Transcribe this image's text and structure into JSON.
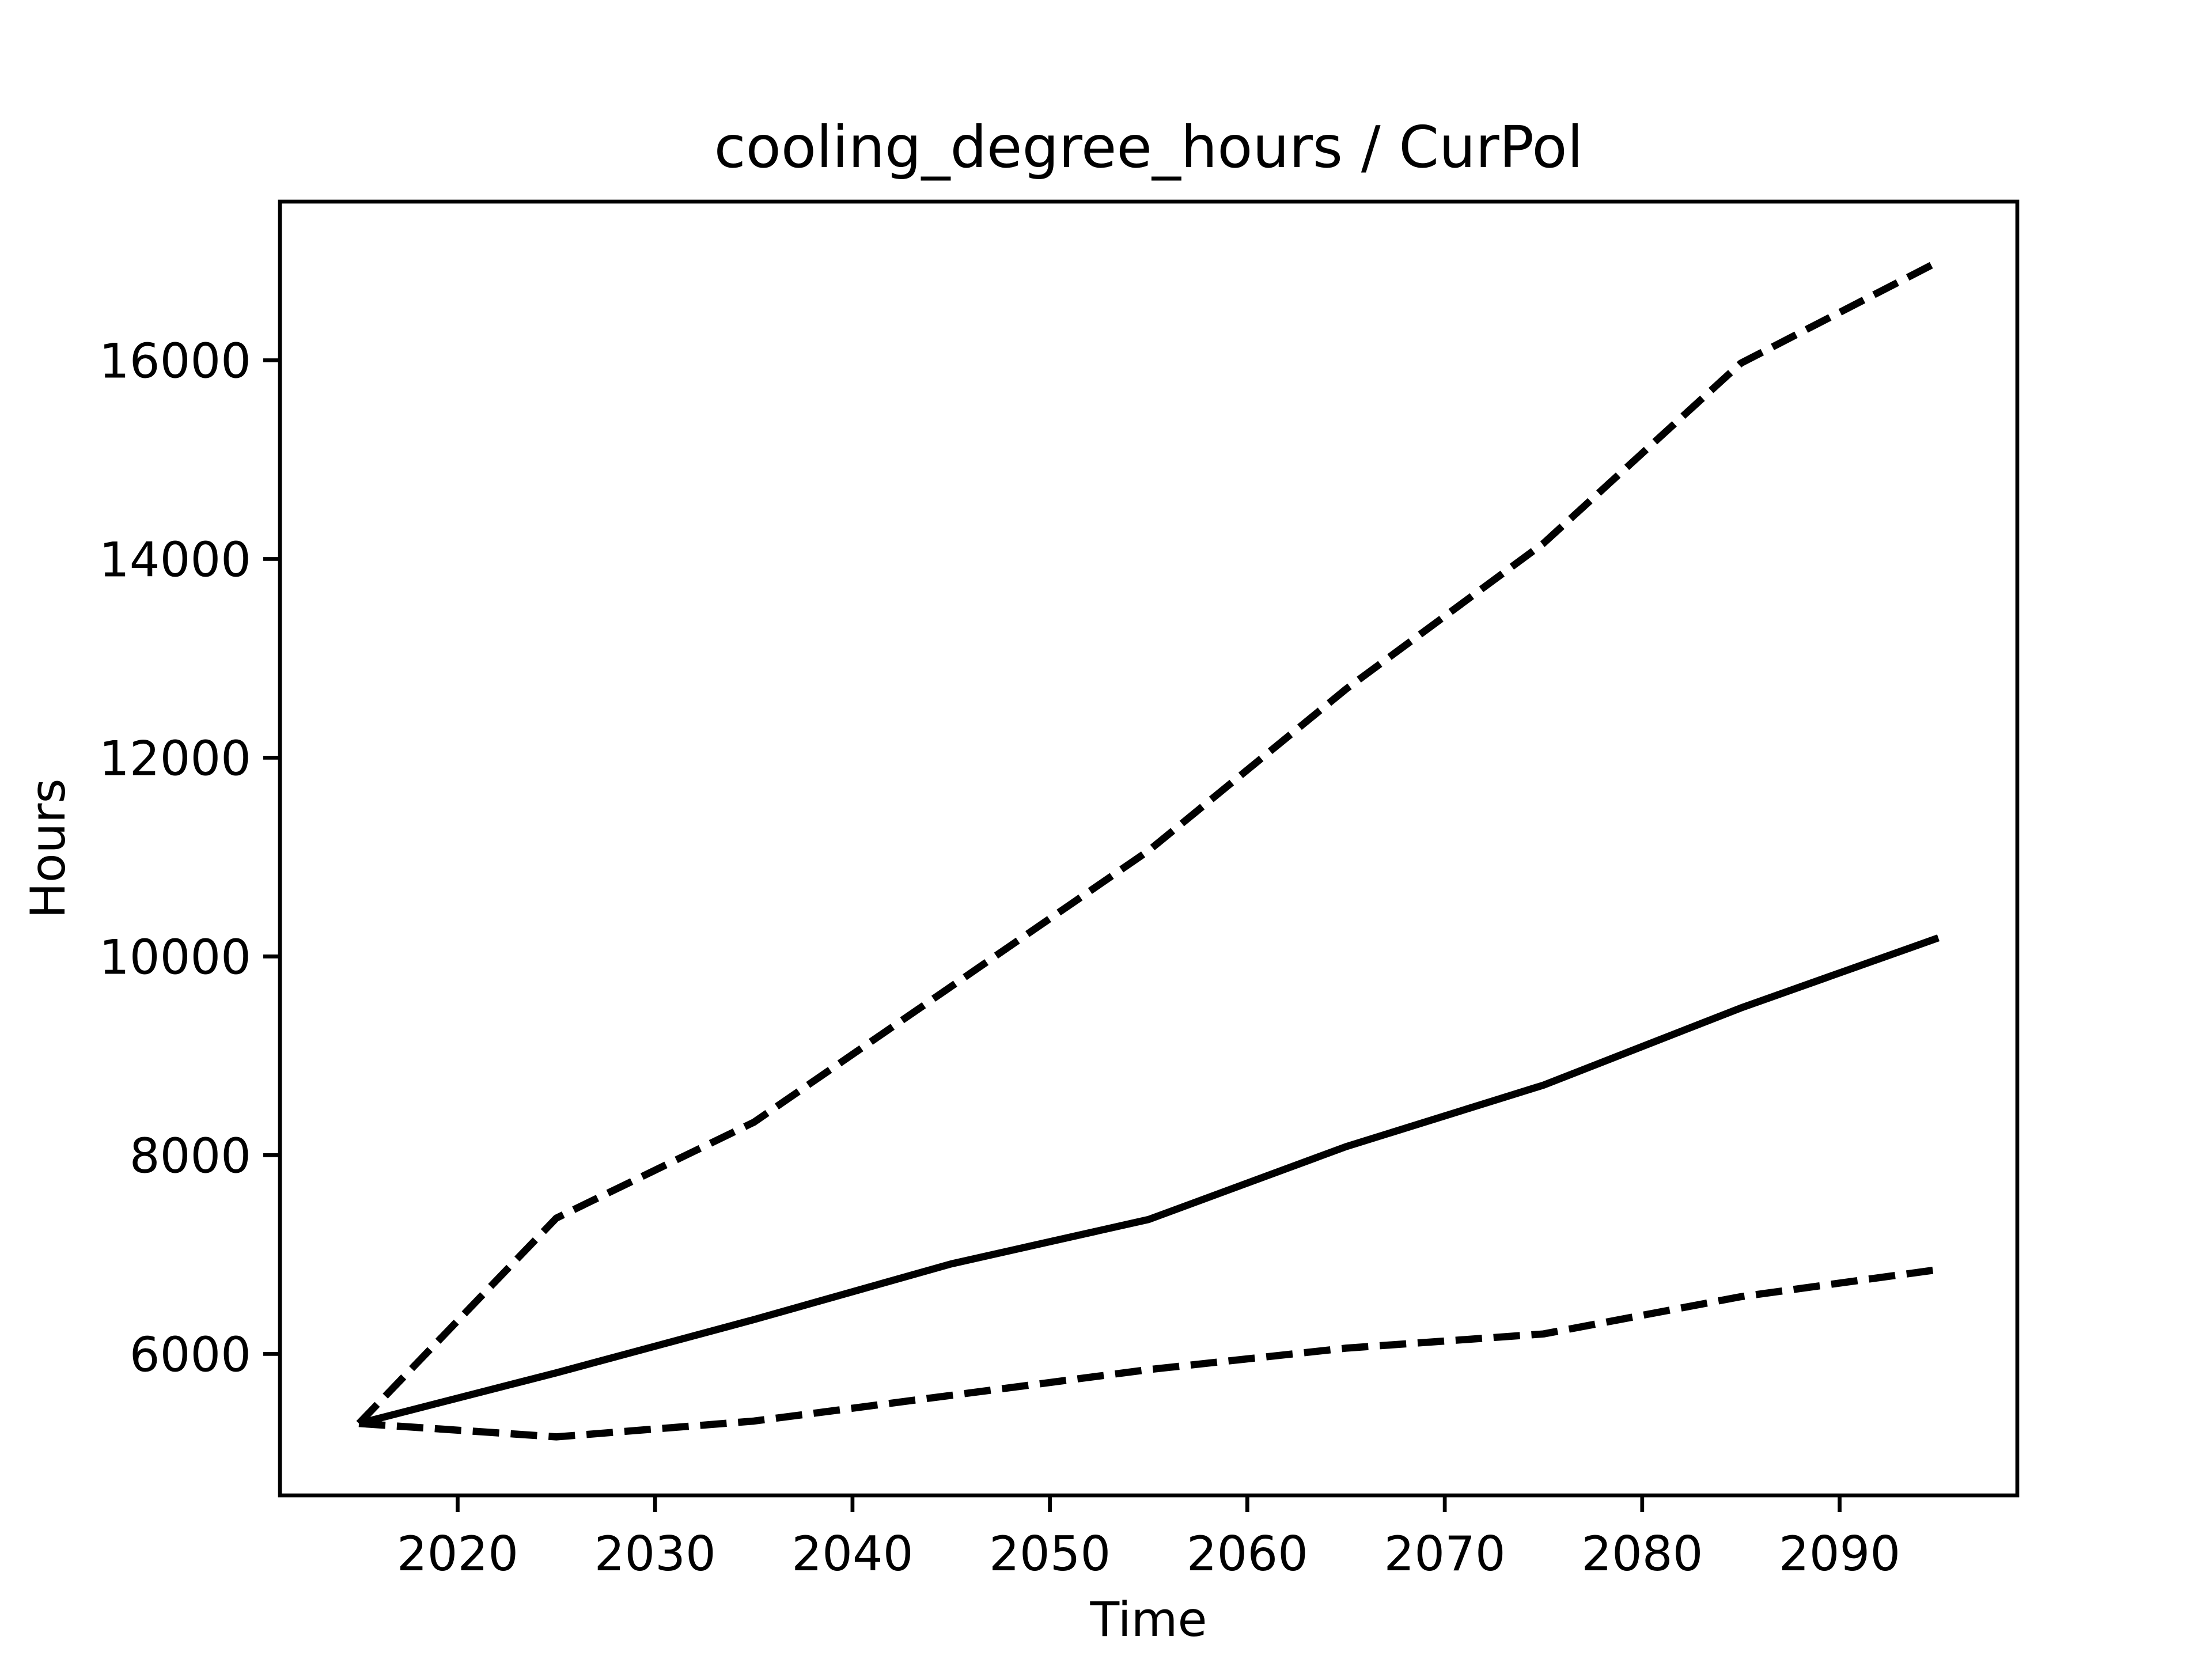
{
  "chart_data": {
    "type": "line",
    "title": "cooling_degree_hours / CurPol",
    "x_label": "Time",
    "y_label": "Hours",
    "x": [
      2015,
      2025,
      2035,
      2045,
      2055,
      2065,
      2075,
      2085,
      2095
    ],
    "series": [
      {
        "color": "#000000",
        "dash": "solid",
        "values": [
          5300,
          5810,
          6345,
          6906,
          7353,
          8086,
          8705,
          9482,
          10187
        ]
      },
      {
        "color": "#000000",
        "dash": "dashed",
        "values": [
          5300,
          7367,
          8331,
          9698,
          11065,
          12691,
          14158,
          15971,
          16993
        ]
      },
      {
        "color": "#000000",
        "dash": "dashed",
        "values": [
          5300,
          5165,
          5324,
          5583,
          5842,
          6058,
          6201,
          6576,
          6849
        ]
      }
    ],
    "xlim": [
      2011,
      2099
    ],
    "ylim": [
      4576,
      17597
    ],
    "xticks": [
      2020,
      2030,
      2040,
      2050,
      2060,
      2070,
      2080,
      2090
    ],
    "yticks": [
      6000,
      8000,
      10000,
      12000,
      14000,
      16000
    ],
    "grid": false
  }
}
